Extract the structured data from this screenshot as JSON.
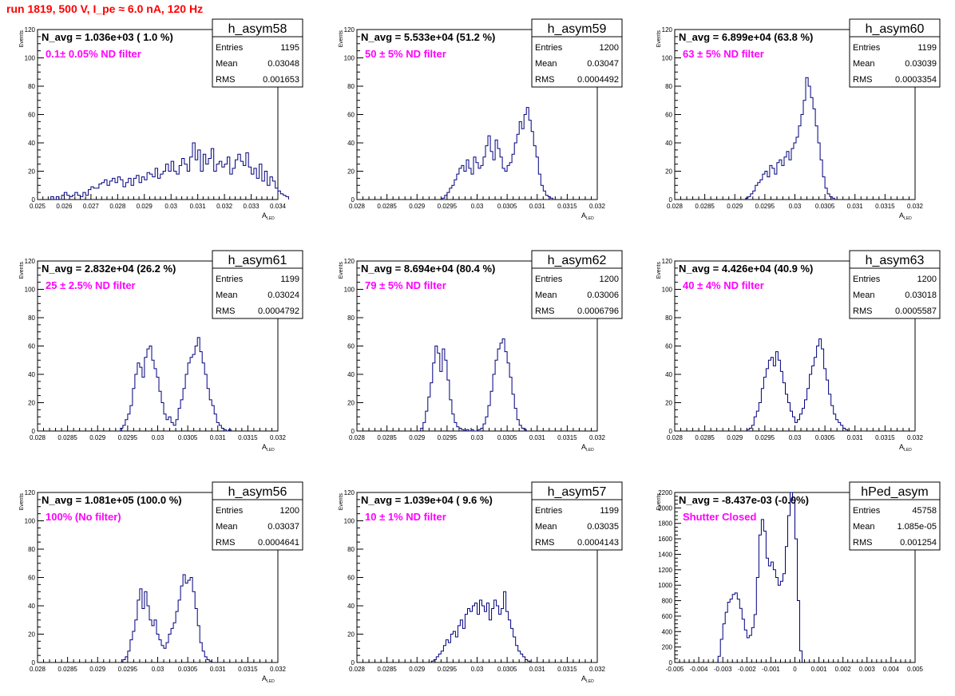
{
  "run_title": "run 1819,   500 V, I_pe ≈ 6.0 nA, 120 Hz",
  "colors": {
    "histogram": "#000080",
    "annotation_title": "#000000",
    "filter_label": "#ff00ff",
    "run_title": "#ff0000"
  },
  "chart_data": [
    {
      "type": "bar",
      "hist_name": "h_asym58",
      "annotation": "N_avg = 1.036e+03 ( 1.0 %)",
      "filter_label": "0.1± 0.05% ND filter",
      "stats": {
        "entries": "1195",
        "mean": "0.03048",
        "rms": "0.001653"
      },
      "stat_labels": [
        "Entries",
        "Mean",
        "RMS"
      ],
      "ylabel": "Events",
      "xlabel_main": "A",
      "xlabel_sub": "LED",
      "xlim": [
        0.025,
        0.034
      ],
      "ylim": [
        0,
        120
      ],
      "x_ticks": [
        0.025,
        0.026,
        0.027,
        0.028,
        0.029,
        0.03,
        0.031,
        0.032,
        0.033,
        0.034
      ],
      "x_tick_labels": [
        "0.025",
        "0.026",
        "0.027",
        "0.028",
        "0.029",
        "0.03",
        "0.031",
        "0.032",
        "0.033",
        "0.034"
      ],
      "y_ticks": [
        0,
        20,
        40,
        60,
        80,
        100,
        120
      ],
      "y_tick_labels": [
        "0",
        "20",
        "40",
        "60",
        "80",
        "100",
        "120"
      ],
      "bins": {
        "xmin": 0.0255,
        "width": 0.0001,
        "counts": [
          2,
          0,
          2,
          0,
          3,
          5,
          3,
          2,
          3,
          5,
          3,
          2,
          5,
          3,
          7,
          9,
          8,
          8,
          11,
          12,
          14,
          10,
          13,
          15,
          12,
          16,
          14,
          9,
          12,
          15,
          10,
          15,
          17,
          12,
          16,
          14,
          19,
          18,
          16,
          22,
          15,
          18,
          20,
          25,
          20,
          27,
          20,
          18,
          24,
          29,
          25,
          20,
          30,
          40,
          28,
          35,
          20,
          32,
          25,
          29,
          36,
          20,
          25,
          27,
          23,
          25,
          30,
          18,
          22,
          28,
          32,
          27,
          24,
          33,
          23,
          18,
          22,
          15,
          25,
          13,
          20,
          10,
          16,
          13,
          8,
          6,
          4,
          3,
          2
        ]
      }
    },
    {
      "type": "bar",
      "hist_name": "h_asym59",
      "annotation": "N_avg = 5.533e+04 (51.2 %)",
      "filter_label": "50 ± 5% ND filter",
      "stats": {
        "entries": "1200",
        "mean": "0.03047",
        "rms": "0.0004492"
      },
      "stat_labels": [
        "Entries",
        "Mean",
        "RMS"
      ],
      "ylabel": "Events",
      "xlabel_main": "A",
      "xlabel_sub": "LED",
      "xlim": [
        0.028,
        0.032
      ],
      "ylim": [
        0,
        120
      ],
      "x_ticks": [
        0.028,
        0.0285,
        0.029,
        0.0295,
        0.03,
        0.0305,
        0.031,
        0.0315,
        0.032
      ],
      "x_tick_labels": [
        "0.028",
        "0.0285",
        "0.029",
        "0.0295",
        "0.03",
        "0.0305",
        "0.031",
        "0.0315",
        "0.032"
      ],
      "y_ticks": [
        0,
        20,
        40,
        60,
        80,
        100,
        120
      ],
      "y_tick_labels": [
        "0",
        "20",
        "40",
        "60",
        "80",
        "100",
        "120"
      ],
      "bins": {
        "xmin": 0.02942,
        "width": 4e-05,
        "counts": [
          1,
          3,
          5,
          8,
          10,
          14,
          18,
          22,
          24,
          20,
          28,
          22,
          18,
          30,
          26,
          22,
          24,
          30,
          38,
          45,
          34,
          28,
          42,
          36,
          30,
          22,
          20,
          24,
          26,
          32,
          40,
          46,
          55,
          50,
          60,
          65,
          56,
          48,
          38,
          30,
          18,
          10,
          6,
          3,
          2,
          1
        ]
      }
    },
    {
      "type": "bar",
      "hist_name": "h_asym60",
      "annotation": "N_avg = 6.899e+04 (63.8 %)",
      "filter_label": "63 ± 5% ND filter",
      "stats": {
        "entries": "1199",
        "mean": "0.03039",
        "rms": "0.0003354"
      },
      "stat_labels": [
        "Entries",
        "Mean",
        "RMS"
      ],
      "ylabel": "Events",
      "xlabel_main": "A",
      "xlabel_sub": "LED",
      "xlim": [
        0.028,
        0.032
      ],
      "ylim": [
        0,
        120
      ],
      "x_ticks": [
        0.028,
        0.0285,
        0.029,
        0.0295,
        0.03,
        0.0305,
        0.031,
        0.0315,
        0.032
      ],
      "x_tick_labels": [
        "0.028",
        "0.0285",
        "0.029",
        "0.0295",
        "0.03",
        "0.0305",
        "0.031",
        "0.0315",
        "0.032"
      ],
      "y_ticks": [
        0,
        20,
        40,
        60,
        80,
        100,
        120
      ],
      "y_tick_labels": [
        "0",
        "20",
        "40",
        "60",
        "80",
        "100",
        "120"
      ],
      "bins": {
        "xmin": 0.02918,
        "width": 4e-05,
        "counts": [
          1,
          2,
          4,
          6,
          10,
          12,
          14,
          18,
          20,
          16,
          24,
          22,
          18,
          26,
          28,
          24,
          30,
          34,
          28,
          36,
          40,
          44,
          52,
          60,
          70,
          86,
          80,
          72,
          64,
          52,
          40,
          28,
          16,
          8,
          4,
          2,
          1
        ]
      }
    },
    {
      "type": "bar",
      "hist_name": "h_asym61",
      "annotation": "N_avg = 2.832e+04 (26.2 %)",
      "filter_label": "25 ± 2.5% ND filter",
      "stats": {
        "entries": "1199",
        "mean": "0.03024",
        "rms": "0.0004792"
      },
      "stat_labels": [
        "Entries",
        "Mean",
        "RMS"
      ],
      "ylabel": "Events",
      "xlabel_main": "A",
      "xlabel_sub": "LED",
      "xlim": [
        0.028,
        0.032
      ],
      "ylim": [
        0,
        120
      ],
      "x_ticks": [
        0.028,
        0.0285,
        0.029,
        0.0295,
        0.03,
        0.0305,
        0.031,
        0.0315,
        0.032
      ],
      "x_tick_labels": [
        "0.028",
        "0.0285",
        "0.029",
        "0.0295",
        "0.03",
        "0.0305",
        "0.031",
        "0.0315",
        "0.032"
      ],
      "y_ticks": [
        0,
        20,
        40,
        60,
        80,
        100,
        120
      ],
      "y_tick_labels": [
        "0",
        "20",
        "40",
        "60",
        "80",
        "100",
        "120"
      ],
      "bins": {
        "xmin": 0.02938,
        "width": 4e-05,
        "counts": [
          2,
          4,
          8,
          12,
          18,
          30,
          40,
          48,
          45,
          38,
          52,
          58,
          60,
          50,
          44,
          38,
          28,
          20,
          12,
          8,
          10,
          6,
          4,
          8,
          16,
          22,
          30,
          40,
          48,
          52,
          54,
          60,
          66,
          56,
          48,
          40,
          30,
          22,
          18,
          12,
          6,
          4,
          2,
          1,
          0,
          1
        ]
      }
    },
    {
      "type": "bar",
      "hist_name": "h_asym62",
      "annotation": "N_avg = 8.694e+04 (80.4 %)",
      "filter_label": "79 ± 5% ND filter",
      "stats": {
        "entries": "1200",
        "mean": "0.03006",
        "rms": "0.0006796"
      },
      "stat_labels": [
        "Entries",
        "Mean",
        "RMS"
      ],
      "ylabel": "Events",
      "xlabel_main": "A",
      "xlabel_sub": "LED",
      "xlim": [
        0.028,
        0.032
      ],
      "ylim": [
        0,
        120
      ],
      "x_ticks": [
        0.028,
        0.0285,
        0.029,
        0.0295,
        0.03,
        0.0305,
        0.031,
        0.0315,
        0.032
      ],
      "x_tick_labels": [
        "0.028",
        "0.0285",
        "0.029",
        "0.0295",
        "0.03",
        "0.0305",
        "0.031",
        "0.0315",
        "0.032"
      ],
      "y_ticks": [
        0,
        20,
        40,
        60,
        80,
        100,
        120
      ],
      "y_tick_labels": [
        "0",
        "20",
        "40",
        "60",
        "80",
        "100",
        "120"
      ],
      "bins": {
        "xmin": 0.02906,
        "width": 4e-05,
        "counts": [
          2,
          6,
          14,
          24,
          34,
          48,
          60,
          55,
          42,
          58,
          50,
          36,
          22,
          12,
          6,
          3,
          2,
          1,
          0,
          1,
          0,
          1,
          0,
          0,
          1,
          2,
          5,
          10,
          18,
          28,
          40,
          50,
          58,
          62,
          65,
          56,
          48,
          38,
          26,
          16,
          8,
          4,
          2,
          1
        ]
      }
    },
    {
      "type": "bar",
      "hist_name": "h_asym63",
      "annotation": "N_avg = 4.426e+04 (40.9 %)",
      "filter_label": "40 ± 4% ND filter",
      "stats": {
        "entries": "1200",
        "mean": "0.03018",
        "rms": "0.0005587"
      },
      "stat_labels": [
        "Entries",
        "Mean",
        "RMS"
      ],
      "ylabel": "Events",
      "xlabel_main": "A",
      "xlabel_sub": "LED",
      "xlim": [
        0.028,
        0.032
      ],
      "ylim": [
        0,
        120
      ],
      "x_ticks": [
        0.028,
        0.0285,
        0.029,
        0.0295,
        0.03,
        0.0305,
        0.031,
        0.0315,
        0.032
      ],
      "x_tick_labels": [
        "0.028",
        "0.0285",
        "0.029",
        "0.0295",
        "0.03",
        "0.0305",
        "0.031",
        "0.0315",
        "0.032"
      ],
      "y_ticks": [
        0,
        20,
        40,
        60,
        80,
        100,
        120
      ],
      "y_tick_labels": [
        "0",
        "20",
        "40",
        "60",
        "80",
        "100",
        "120"
      ],
      "bins": {
        "xmin": 0.0292,
        "width": 4e-05,
        "counts": [
          1,
          2,
          4,
          10,
          14,
          20,
          30,
          38,
          44,
          50,
          52,
          46,
          56,
          50,
          42,
          34,
          26,
          20,
          14,
          10,
          6,
          8,
          12,
          16,
          22,
          30,
          40,
          46,
          52,
          60,
          65,
          58,
          44,
          36,
          26,
          18,
          12,
          8,
          6,
          4,
          2,
          1
        ]
      }
    },
    {
      "type": "bar",
      "hist_name": "h_asym56",
      "annotation": "N_avg = 1.081e+05 (100.0 %)",
      "filter_label": "100% (No filter)",
      "stats": {
        "entries": "1200",
        "mean": "0.03037",
        "rms": "0.0004641"
      },
      "stat_labels": [
        "Entries",
        "Mean",
        "RMS"
      ],
      "ylabel": "Events",
      "xlabel_main": "A",
      "xlabel_sub": "LED",
      "xlim": [
        0.028,
        0.032
      ],
      "ylim": [
        0,
        120
      ],
      "x_ticks": [
        0.028,
        0.0285,
        0.029,
        0.0295,
        0.03,
        0.0305,
        0.031,
        0.0315,
        0.032
      ],
      "x_tick_labels": [
        "0.028",
        "0.0285",
        "0.029",
        "0.0295",
        "0.03",
        "0.0305",
        "0.031",
        "0.0315",
        "0.032"
      ],
      "y_ticks": [
        0,
        20,
        40,
        60,
        80,
        100,
        120
      ],
      "y_tick_labels": [
        "0",
        "20",
        "40",
        "60",
        "80",
        "100",
        "120"
      ],
      "bins": {
        "xmin": 0.02942,
        "width": 4e-05,
        "counts": [
          2,
          4,
          8,
          16,
          22,
          30,
          44,
          52,
          38,
          50,
          40,
          30,
          26,
          30,
          20,
          16,
          12,
          10,
          14,
          20,
          24,
          28,
          36,
          44,
          54,
          62,
          56,
          58,
          60,
          50,
          38,
          26,
          14,
          8,
          4,
          2,
          1
        ]
      }
    },
    {
      "type": "bar",
      "hist_name": "h_asym57",
      "annotation": "N_avg = 1.039e+04 ( 9.6 %)",
      "filter_label": "10 ± 1% ND filter",
      "stats": {
        "entries": "1199",
        "mean": "0.03035",
        "rms": "0.0004143"
      },
      "stat_labels": [
        "Entries",
        "Mean",
        "RMS"
      ],
      "ylabel": "Events",
      "xlabel_main": "A",
      "xlabel_sub": "LED",
      "xlim": [
        0.028,
        0.032
      ],
      "ylim": [
        0,
        120
      ],
      "x_ticks": [
        0.028,
        0.0285,
        0.029,
        0.0295,
        0.03,
        0.0305,
        0.031,
        0.0315,
        0.032
      ],
      "x_tick_labels": [
        "0.028",
        "0.0285",
        "0.029",
        "0.0295",
        "0.03",
        "0.0305",
        "0.031",
        "0.0315",
        "0.032"
      ],
      "y_ticks": [
        0,
        20,
        40,
        60,
        80,
        100,
        120
      ],
      "y_tick_labels": [
        "0",
        "20",
        "40",
        "60",
        "80",
        "100",
        "120"
      ],
      "bins": {
        "xmin": 0.02924,
        "width": 4e-05,
        "counts": [
          1,
          2,
          4,
          6,
          8,
          12,
          16,
          14,
          20,
          22,
          18,
          26,
          30,
          24,
          34,
          38,
          36,
          40,
          42,
          34,
          44,
          40,
          36,
          42,
          30,
          38,
          44,
          40,
          34,
          38,
          50,
          36,
          30,
          24,
          18,
          12,
          8,
          6,
          4,
          2,
          1
        ]
      }
    },
    {
      "type": "bar",
      "hist_name": "hPed_asym",
      "annotation": "N_avg = -8.437e-03 (-0.0%)",
      "filter_label": "Shutter Closed",
      "stats": {
        "entries": "45758",
        "mean": "1.085e-05",
        "rms": "0.001254"
      },
      "stat_labels": [
        "Entries",
        "Mean",
        "RMS"
      ],
      "ylabel": "Events",
      "xlabel_main": "",
      "xlabel_sub": "",
      "xlim": [
        -0.005,
        0.005
      ],
      "ylim": [
        0,
        2200
      ],
      "x_ticks": [
        -0.005,
        -0.004,
        -0.003,
        -0.002,
        -0.001,
        0,
        0.001,
        0.002,
        0.003,
        0.004,
        0.005
      ],
      "x_tick_labels": [
        "-0.005",
        "-0.004",
        "-0.003",
        "-0.002",
        "-0.001",
        "0",
        "0.001",
        "0.002",
        "0.003",
        "0.004",
        "0.005"
      ],
      "y_ticks": [
        0,
        200,
        400,
        600,
        800,
        1000,
        1200,
        1400,
        1600,
        1800,
        2000,
        2200
      ],
      "y_tick_labels": [
        "0",
        "200",
        "400",
        "600",
        "800",
        "1000",
        "1200",
        "1400",
        "1600",
        "1800",
        "2000",
        "2200"
      ],
      "bins": {
        "xmin": -0.0032,
        "width": 0.0001,
        "counts": [
          80,
          300,
          500,
          650,
          780,
          820,
          880,
          900,
          820,
          700,
          560,
          420,
          320,
          350,
          450,
          620,
          1100,
          1650,
          1850,
          1700,
          1350,
          1250,
          1300,
          1200,
          1100,
          1000,
          1050,
          1150,
          1500,
          1900,
          2200,
          2100,
          1600,
          800,
          150
        ]
      }
    }
  ]
}
